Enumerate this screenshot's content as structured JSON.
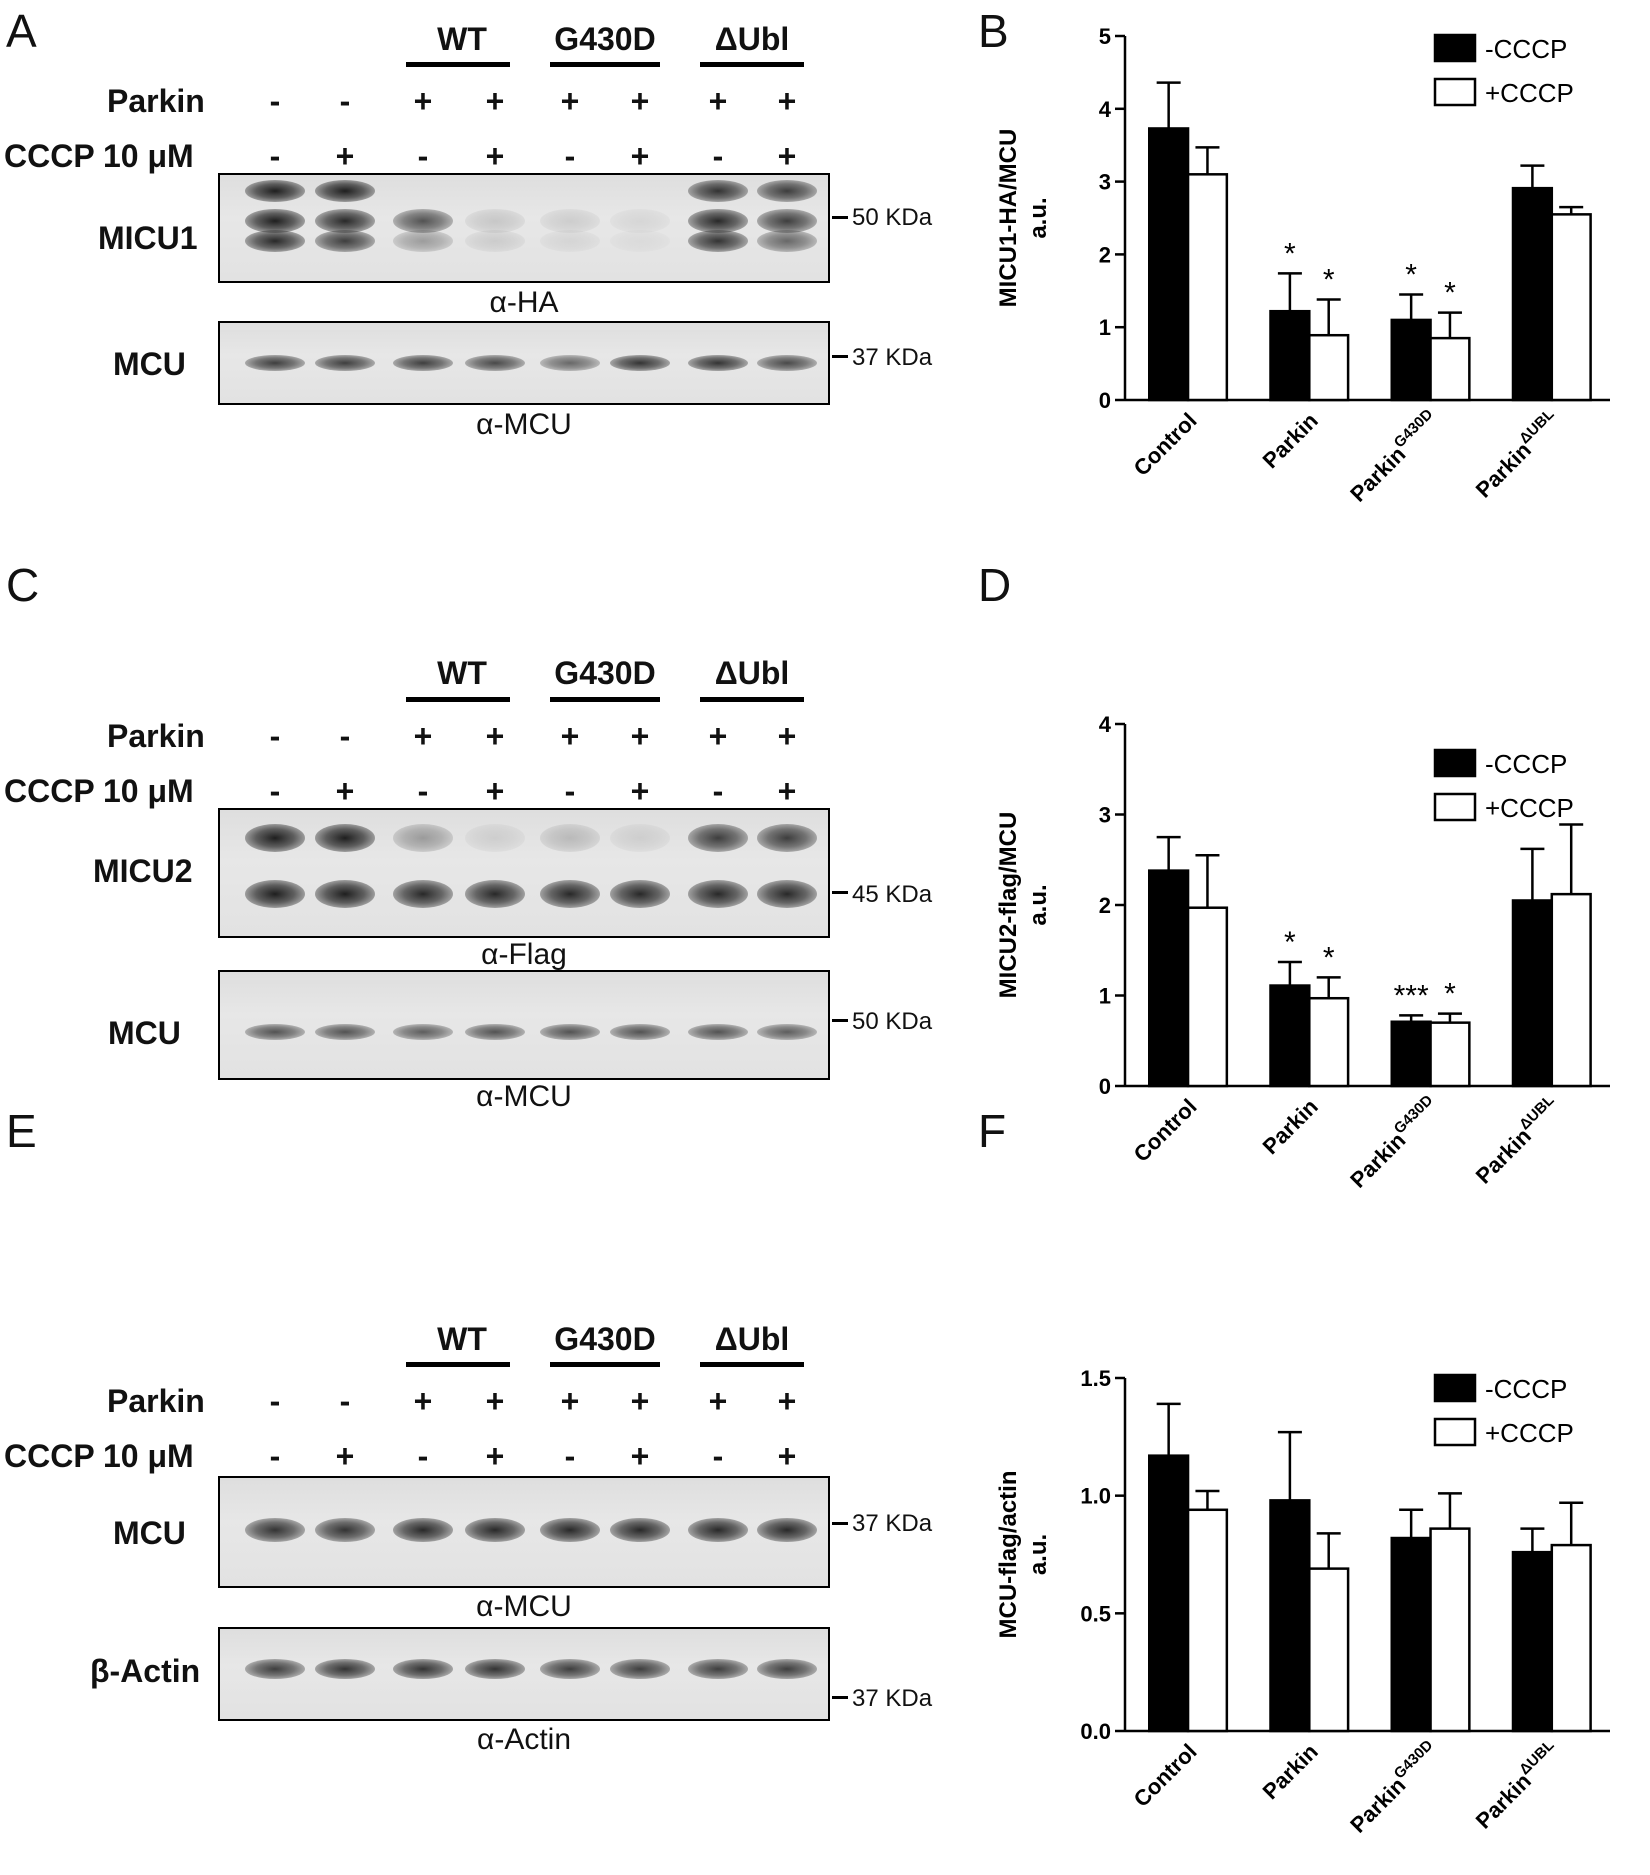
{
  "panels": {
    "A": "A",
    "B": "B",
    "C": "C",
    "D": "D",
    "E": "E",
    "F": "F"
  },
  "blot_header": {
    "groups": [
      "WT",
      "G430D",
      "ΔUbl"
    ],
    "row1_label": "Parkin",
    "row1_signs": [
      "-",
      "-",
      "+",
      "+",
      "+",
      "+",
      "+",
      "+"
    ],
    "row2_label": "CCCP 10 μM",
    "row2_signs": [
      "-",
      "+",
      "-",
      "+",
      "-",
      "+",
      "-",
      "+"
    ]
  },
  "blot_A": {
    "top_label": "MICU1",
    "top_antibody": "α-HA",
    "top_mw": "50 KDa",
    "bottom_label": "MCU",
    "bottom_antibody": "α-MCU",
    "bottom_mw": "37 KDa"
  },
  "blot_C": {
    "top_label": "MICU2",
    "top_antibody": "α-Flag",
    "top_mw": "45 KDa",
    "bottom_label": "MCU",
    "bottom_antibody": "α-MCU",
    "bottom_mw": "50 KDa"
  },
  "blot_E": {
    "top_label": "MCU",
    "top_antibody": "α-MCU",
    "top_mw": "37 KDa",
    "bottom_label": "β-Actin",
    "bottom_antibody": "α-Actin",
    "bottom_mw": "37 KDa"
  },
  "legend": [
    "-CCCP",
    "+CCCP"
  ],
  "colors": {
    "minus_cccp": "#000000",
    "plus_cccp": "#ffffff"
  },
  "chart_data": [
    {
      "id": "B",
      "type": "bar",
      "categories": [
        "Control",
        "Parkin",
        "Parkin",
        "Parkin"
      ],
      "category_superscripts": [
        "",
        "",
        "G430D",
        "ΔUBL"
      ],
      "ylabel": "MICU1-HA/MCU",
      "ylabel2": "a.u.",
      "ylim": [
        0,
        5
      ],
      "yticks": [
        "0",
        "1",
        "2",
        "3",
        "4",
        "5"
      ],
      "series": [
        {
          "name": "-CCCP",
          "values": [
            3.73,
            1.22,
            1.1,
            2.91
          ],
          "errors": [
            0.63,
            0.52,
            0.35,
            0.31
          ],
          "stars": [
            "",
            "*",
            "*",
            ""
          ]
        },
        {
          "name": "+CCCP",
          "values": [
            3.1,
            0.89,
            0.85,
            2.55
          ],
          "errors": [
            0.37,
            0.49,
            0.35,
            0.1
          ],
          "stars": [
            "",
            "*",
            "*",
            ""
          ]
        }
      ]
    },
    {
      "id": "D",
      "type": "bar",
      "categories": [
        "Control",
        "Parkin",
        "Parkin",
        "Parkin"
      ],
      "category_superscripts": [
        "",
        "",
        "G430D",
        "ΔUBL"
      ],
      "ylabel": "MICU2-flag/MCU",
      "ylabel2": "a.u.",
      "ylim": [
        0,
        4
      ],
      "yticks": [
        "0",
        "1",
        "2",
        "3",
        "4"
      ],
      "series": [
        {
          "name": "-CCCP",
          "values": [
            2.38,
            1.11,
            0.71,
            2.05
          ],
          "errors": [
            0.37,
            0.26,
            0.07,
            0.57
          ],
          "stars": [
            "",
            "*",
            "***",
            ""
          ]
        },
        {
          "name": "+CCCP",
          "values": [
            1.97,
            0.97,
            0.7,
            2.12
          ],
          "errors": [
            0.58,
            0.23,
            0.1,
            0.77
          ],
          "stars": [
            "",
            "*",
            "*",
            ""
          ]
        }
      ]
    },
    {
      "id": "F",
      "type": "bar",
      "categories": [
        "Control",
        "Parkin",
        "Parkin",
        "Parkin"
      ],
      "category_superscripts": [
        "",
        "",
        "G430D",
        "ΔUBL"
      ],
      "ylabel": "MCU-flag/actin",
      "ylabel2": "a.u.",
      "ylim": [
        0,
        1.5
      ],
      "yticks": [
        "0.0",
        "0.5",
        "1.0",
        "1.5"
      ],
      "series": [
        {
          "name": "-CCCP",
          "values": [
            1.17,
            0.98,
            0.82,
            0.76
          ],
          "errors": [
            0.22,
            0.29,
            0.12,
            0.1
          ],
          "stars": [
            "",
            "",
            "",
            ""
          ]
        },
        {
          "name": "+CCCP",
          "values": [
            0.94,
            0.69,
            0.86,
            0.79
          ],
          "errors": [
            0.08,
            0.15,
            0.15,
            0.18
          ],
          "stars": [
            "",
            "",
            "",
            ""
          ]
        }
      ]
    }
  ]
}
